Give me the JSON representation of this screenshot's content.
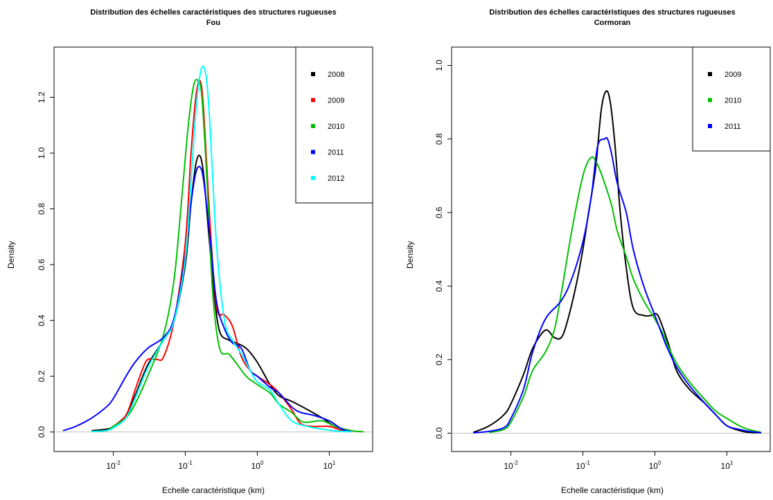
{
  "chart_data": [
    {
      "type": "line",
      "title": "Distribution des échelles caractéristiques des structures rugueuses",
      "subtitle": "Fou",
      "xlabel": "Echelle caractéristique (km)",
      "ylabel": "Density",
      "xscale": "log",
      "xlim": [
        0.0015,
        40
      ],
      "ylim": [
        -0.07,
        1.38
      ],
      "xticks": [
        {
          "value": 0.01,
          "base": "10",
          "exp": "-2"
        },
        {
          "value": 0.1,
          "base": "10",
          "exp": "-1"
        },
        {
          "value": 1,
          "base": "10",
          "exp": "0"
        },
        {
          "value": 10,
          "base": "10",
          "exp": "1"
        }
      ],
      "yticks": [
        {
          "value": 0.0,
          "label": "0.0"
        },
        {
          "value": 0.2,
          "label": "0.2"
        },
        {
          "value": 0.4,
          "label": "0.4"
        },
        {
          "value": 0.6,
          "label": "0.6"
        },
        {
          "value": 0.8,
          "label": "0.8"
        },
        {
          "value": 1.0,
          "label": "1.0"
        },
        {
          "value": 1.2,
          "label": "1.2"
        }
      ],
      "baseline": 0,
      "legend_position": "top-right",
      "series": [
        {
          "name": "2008",
          "color": "#000000",
          "x": [
            0.005,
            0.008,
            0.01,
            0.015,
            0.02,
            0.03,
            0.05,
            0.07,
            0.1,
            0.12,
            0.14,
            0.16,
            0.18,
            0.21,
            0.25,
            0.3,
            0.4,
            0.5,
            0.7,
            1,
            1.5,
            2,
            3,
            5,
            8,
            12,
            20
          ],
          "y": [
            0.005,
            0.01,
            0.02,
            0.06,
            0.13,
            0.24,
            0.33,
            0.4,
            0.6,
            0.82,
            0.96,
            0.99,
            0.92,
            0.72,
            0.5,
            0.36,
            0.33,
            0.32,
            0.3,
            0.25,
            0.17,
            0.13,
            0.11,
            0.08,
            0.05,
            0.02,
            0.005
          ]
        },
        {
          "name": "2009",
          "color": "#ff0000",
          "x": [
            0.005,
            0.008,
            0.01,
            0.015,
            0.02,
            0.025,
            0.03,
            0.04,
            0.05,
            0.07,
            0.1,
            0.12,
            0.14,
            0.16,
            0.18,
            0.22,
            0.27,
            0.35,
            0.45,
            0.6,
            0.8,
            1,
            1.5,
            2,
            3,
            4,
            6,
            10,
            15,
            20
          ],
          "y": [
            0.002,
            0.005,
            0.02,
            0.06,
            0.15,
            0.22,
            0.26,
            0.26,
            0.27,
            0.4,
            0.68,
            1.0,
            1.2,
            1.26,
            1.15,
            0.75,
            0.45,
            0.42,
            0.38,
            0.27,
            0.22,
            0.2,
            0.17,
            0.14,
            0.08,
            0.03,
            0.02,
            0.02,
            0.005,
            0.001
          ]
        },
        {
          "name": "2010",
          "color": "#00c000",
          "x": [
            0.005,
            0.008,
            0.01,
            0.015,
            0.02,
            0.03,
            0.05,
            0.07,
            0.09,
            0.11,
            0.13,
            0.15,
            0.17,
            0.2,
            0.24,
            0.3,
            0.4,
            0.5,
            0.7,
            1,
            1.5,
            2,
            3,
            4,
            5,
            8,
            12,
            20,
            30
          ],
          "y": [
            0.002,
            0.005,
            0.02,
            0.05,
            0.1,
            0.2,
            0.35,
            0.55,
            0.85,
            1.1,
            1.24,
            1.26,
            1.2,
            0.9,
            0.5,
            0.3,
            0.28,
            0.25,
            0.2,
            0.17,
            0.14,
            0.1,
            0.07,
            0.04,
            0.035,
            0.04,
            0.02,
            0.005,
            0.001
          ]
        },
        {
          "name": "2011",
          "color": "#0000ff",
          "x": [
            0.002,
            0.003,
            0.005,
            0.008,
            0.01,
            0.015,
            0.02,
            0.03,
            0.05,
            0.07,
            0.1,
            0.12,
            0.14,
            0.16,
            0.18,
            0.22,
            0.27,
            0.35,
            0.45,
            0.6,
            0.8,
            1,
            1.5,
            2,
            3,
            4,
            6,
            10,
            15,
            20
          ],
          "y": [
            0.005,
            0.02,
            0.05,
            0.09,
            0.12,
            0.2,
            0.25,
            0.3,
            0.34,
            0.41,
            0.63,
            0.82,
            0.93,
            0.95,
            0.9,
            0.7,
            0.47,
            0.37,
            0.32,
            0.3,
            0.22,
            0.2,
            0.16,
            0.14,
            0.09,
            0.07,
            0.06,
            0.04,
            0.01,
            0.002
          ]
        },
        {
          "name": "2012",
          "color": "#00ffff",
          "x": [
            0.005,
            0.008,
            0.01,
            0.015,
            0.02,
            0.03,
            0.05,
            0.07,
            0.1,
            0.12,
            0.14,
            0.16,
            0.18,
            0.2,
            0.22,
            0.27,
            0.35,
            0.45,
            0.6,
            0.8,
            1,
            1.5,
            2,
            3,
            5,
            8,
            12,
            20
          ],
          "y": [
            0.002,
            0.005,
            0.015,
            0.05,
            0.12,
            0.23,
            0.33,
            0.4,
            0.62,
            0.9,
            1.15,
            1.28,
            1.31,
            1.25,
            1.1,
            0.68,
            0.4,
            0.33,
            0.28,
            0.22,
            0.18,
            0.15,
            0.1,
            0.04,
            0.02,
            0.01,
            0.004,
            0.001
          ]
        }
      ]
    },
    {
      "type": "line",
      "title": "Distribution des échelles caractéristiques des structures rugueuses",
      "subtitle": "Cormoran",
      "xlabel": "Echelle caractéristique (km)",
      "ylabel": "Density",
      "xscale": "log",
      "xlim": [
        0.0015,
        40
      ],
      "ylim": [
        -0.05,
        1.05
      ],
      "xticks": [
        {
          "value": 0.01,
          "base": "10",
          "exp": "-2"
        },
        {
          "value": 0.1,
          "base": "10",
          "exp": "-1"
        },
        {
          "value": 1,
          "base": "10",
          "exp": "0"
        },
        {
          "value": 10,
          "base": "10",
          "exp": "1"
        }
      ],
      "yticks": [
        {
          "value": 0.0,
          "label": "0.0"
        },
        {
          "value": 0.2,
          "label": "0.2"
        },
        {
          "value": 0.4,
          "label": "0.4"
        },
        {
          "value": 0.6,
          "label": "0.6"
        },
        {
          "value": 0.8,
          "label": "0.8"
        },
        {
          "value": 1.0,
          "label": "1.0"
        }
      ],
      "baseline": 0,
      "legend_position": "top-right",
      "series": [
        {
          "name": "2009",
          "color": "#000000",
          "x": [
            0.003,
            0.005,
            0.008,
            0.01,
            0.015,
            0.02,
            0.03,
            0.04,
            0.05,
            0.06,
            0.08,
            0.1,
            0.12,
            0.15,
            0.18,
            0.21,
            0.24,
            0.28,
            0.33,
            0.4,
            0.5,
            0.7,
            0.9,
            1.1,
            1.5,
            2,
            3,
            5,
            7,
            10,
            15,
            20,
            30
          ],
          "y": [
            0.002,
            0.02,
            0.05,
            0.08,
            0.16,
            0.23,
            0.28,
            0.26,
            0.26,
            0.3,
            0.4,
            0.5,
            0.6,
            0.72,
            0.88,
            0.93,
            0.9,
            0.78,
            0.6,
            0.45,
            0.34,
            0.32,
            0.32,
            0.32,
            0.25,
            0.17,
            0.12,
            0.08,
            0.05,
            0.02,
            0.007,
            0.002,
            0.001
          ]
        },
        {
          "name": "2010",
          "color": "#00c000",
          "x": [
            0.005,
            0.008,
            0.01,
            0.015,
            0.02,
            0.03,
            0.04,
            0.05,
            0.07,
            0.1,
            0.13,
            0.16,
            0.2,
            0.25,
            0.3,
            0.4,
            0.5,
            0.7,
            1,
            1.3,
            1.5,
            2,
            3,
            5,
            7,
            10,
            15,
            20,
            30
          ],
          "y": [
            0.002,
            0.01,
            0.03,
            0.1,
            0.17,
            0.22,
            0.28,
            0.38,
            0.55,
            0.7,
            0.75,
            0.73,
            0.68,
            0.62,
            0.55,
            0.48,
            0.42,
            0.36,
            0.31,
            0.27,
            0.24,
            0.19,
            0.14,
            0.09,
            0.06,
            0.04,
            0.02,
            0.01,
            0.002
          ]
        },
        {
          "name": "2011",
          "color": "#0000ff",
          "x": [
            0.003,
            0.005,
            0.008,
            0.01,
            0.015,
            0.02,
            0.03,
            0.05,
            0.07,
            0.1,
            0.13,
            0.16,
            0.2,
            0.22,
            0.25,
            0.3,
            0.4,
            0.5,
            0.7,
            1,
            1.3,
            1.5,
            2,
            3,
            5,
            7,
            10,
            15,
            20,
            30
          ],
          "y": [
            0.001,
            0.005,
            0.015,
            0.04,
            0.12,
            0.22,
            0.31,
            0.36,
            0.42,
            0.52,
            0.64,
            0.78,
            0.8,
            0.8,
            0.76,
            0.68,
            0.6,
            0.5,
            0.4,
            0.32,
            0.26,
            0.23,
            0.18,
            0.13,
            0.08,
            0.05,
            0.02,
            0.01,
            0.005,
            0.001
          ]
        }
      ]
    }
  ]
}
